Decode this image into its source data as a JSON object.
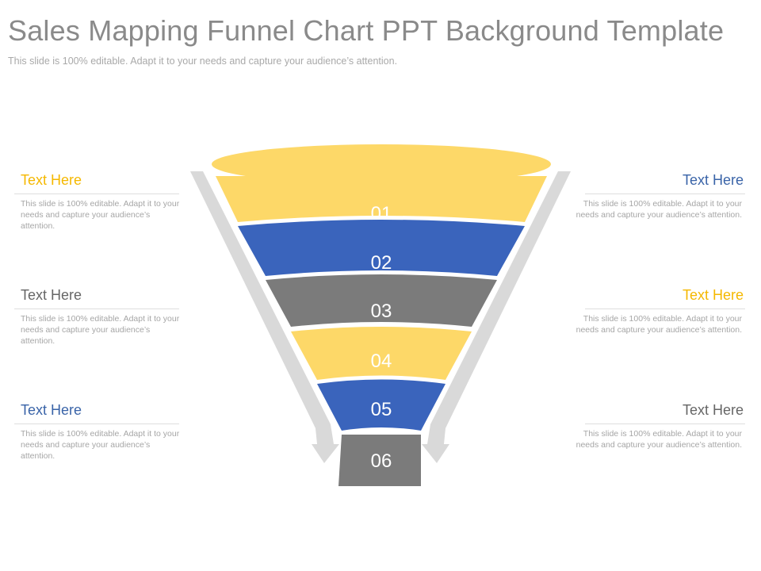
{
  "header": {
    "title": "Sales Mapping Funnel Chart PPT Background Template",
    "subtitle": "This slide is 100% editable. Adapt it to your needs and capture your audience’s attention."
  },
  "colors": {
    "yellow": "#FDD868",
    "blue": "#3A64BC",
    "gray": "#7B7B7B",
    "arrow": "#D9D9D9"
  },
  "funnel": {
    "stages": [
      {
        "label": "01",
        "color": "yellow"
      },
      {
        "label": "02",
        "color": "blue"
      },
      {
        "label": "03",
        "color": "gray"
      },
      {
        "label": "04",
        "color": "yellow"
      },
      {
        "label": "05",
        "color": "blue"
      },
      {
        "label": "06",
        "color": "gray"
      }
    ]
  },
  "text_blocks": {
    "left": [
      {
        "heading": "Text Here",
        "heading_color": "#F5B800",
        "body": "This slide is 100% editable. Adapt it to your needs and capture your audience’s attention."
      },
      {
        "heading": "Text Here",
        "heading_color": "#666666",
        "body": "This slide is 100% editable. Adapt it to your needs and capture your audience’s attention."
      },
      {
        "heading": "Text Here",
        "heading_color": "#3A64A8",
        "body": "This slide is 100% editable. Adapt it to your needs and capture your audience’s attention."
      }
    ],
    "right": [
      {
        "heading": "Text Here",
        "heading_color": "#3A64A8",
        "body": "This slide is 100% editable. Adapt it to your needs and capture your audience’s attention."
      },
      {
        "heading": "Text Here",
        "heading_color": "#F5B800",
        "body": "This slide is 100% editable. Adapt it to your needs and capture your audience’s attention."
      },
      {
        "heading": "Text Here",
        "heading_color": "#666666",
        "body": "This slide is 100% editable. Adapt it to your needs and capture your audience’s attention."
      }
    ]
  }
}
